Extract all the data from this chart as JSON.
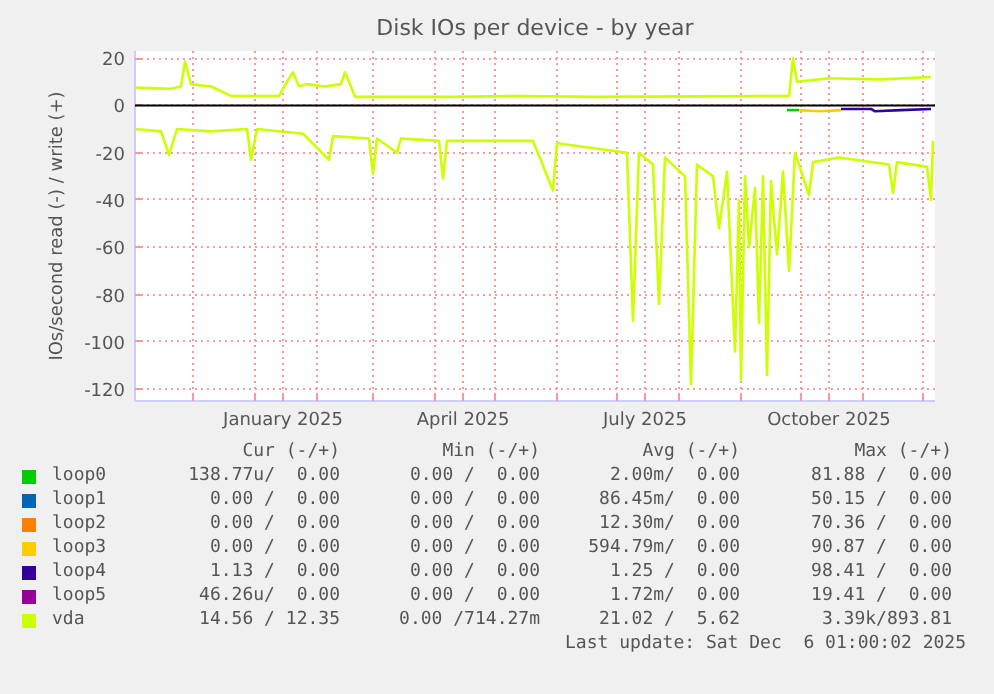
{
  "chart_data": {
    "type": "line",
    "title": "Disk IOs per device - by year",
    "ylabel": "IOs/second read (-) / write (+)",
    "xlim": [
      "2024-11-02",
      "2025-12-07"
    ],
    "ylim": [
      -125,
      23
    ],
    "yticks": [
      -120,
      -100,
      -80,
      -60,
      -40,
      -20,
      0,
      20
    ],
    "xticks": [
      {
        "value": "2024-12-01",
        "label": null
      },
      {
        "value": "2025-01-01",
        "label": null
      },
      {
        "value": "2025-01-15",
        "label": "January 2025"
      },
      {
        "value": "2025-02-01",
        "label": null
      },
      {
        "value": "2025-03-01",
        "label": null
      },
      {
        "value": "2025-04-01",
        "label": null
      },
      {
        "value": "2025-04-15",
        "label": "April 2025"
      },
      {
        "value": "2025-05-01",
        "label": null
      },
      {
        "value": "2025-06-01",
        "label": null
      },
      {
        "value": "2025-07-01",
        "label": null
      },
      {
        "value": "2025-07-15",
        "label": "July 2025"
      },
      {
        "value": "2025-08-01",
        "label": null
      },
      {
        "value": "2025-09-01",
        "label": null
      },
      {
        "value": "2025-10-01",
        "label": null
      },
      {
        "value": "2025-10-15",
        "label": "October 2025"
      },
      {
        "value": "2025-11-01",
        "label": null
      },
      {
        "value": "2025-12-01",
        "label": null
      }
    ],
    "grid": true,
    "legend": "bottom",
    "ref_lines": [
      {
        "axis": "y",
        "value": 0,
        "color": "#000000"
      }
    ],
    "series": [
      {
        "name": "loop0",
        "color": "#00cc00",
        "x": [
          "2025-09-24",
          "2025-09-30"
        ],
        "values": [
          -2,
          -2
        ]
      },
      {
        "name": "loop1",
        "color": "#0066b3"
      },
      {
        "name": "loop2",
        "color": "#ff8000"
      },
      {
        "name": "loop3",
        "color": "#ffcc00",
        "x": [
          "2025-09-30",
          "2025-10-10",
          "2025-10-21"
        ],
        "values": [
          -2,
          -2.5,
          -2
        ]
      },
      {
        "name": "loop4",
        "color": "#330099",
        "x": [
          "2025-10-21",
          "2025-11-05",
          "2025-11-07",
          "2025-11-20",
          "2025-12-05"
        ],
        "values": [
          -1.5,
          -1.5,
          -2.5,
          -2,
          -1.5
        ]
      },
      {
        "name": "loop5",
        "color": "#990099"
      },
      {
        "name": "vda",
        "color": "#ccff00",
        "x": [
          "2024-11-02",
          "2024-11-20",
          "2024-11-25",
          "2024-11-27",
          "2024-11-30",
          "2024-12-10",
          "2024-12-20",
          "2025-01-05",
          "2025-01-13",
          "2025-01-17",
          "2025-01-20",
          "2025-01-23",
          "2025-01-27",
          "2025-02-05",
          "2025-02-13",
          "2025-02-15",
          "2025-02-18",
          "2025-02-20",
          "2025-04-10",
          "2025-05-15",
          "2025-06-20",
          "2025-08-10",
          "2025-09-25",
          "2025-09-27",
          "2025-09-29",
          "2025-10-15",
          "2025-11-10",
          "2025-12-05"
        ],
        "values": [
          7.5,
          7,
          8,
          18.5,
          9,
          8,
          4,
          4,
          4,
          10,
          14,
          8,
          9,
          8,
          9,
          14,
          8,
          3.6,
          3.6,
          4,
          3.6,
          3.8,
          4,
          20,
          10,
          11.5,
          11,
          12
        ]
      },
      {
        "color": "#ccff00",
        "x": [
          "2024-11-02",
          "2024-11-15",
          "2024-11-19",
          "2024-11-23",
          "2024-12-10",
          "2024-12-28",
          "2024-12-30",
          "2025-01-02",
          "2025-01-25",
          "2025-02-07",
          "2025-02-09",
          "2025-02-27",
          "2025-03-01",
          "2025-03-03",
          "2025-03-13",
          "2025-03-15",
          "2025-04-03",
          "2025-04-05",
          "2025-04-07",
          "2025-05-20",
          "2025-05-30",
          "2025-06-01",
          "2025-07-06",
          "2025-07-09",
          "2025-07-12",
          "2025-07-19",
          "2025-07-22",
          "2025-07-25",
          "2025-08-04",
          "2025-08-07",
          "2025-08-10",
          "2025-08-18",
          "2025-08-21",
          "2025-08-25",
          "2025-08-29",
          "2025-08-31",
          "2025-09-01",
          "2025-09-03",
          "2025-09-05",
          "2025-09-08",
          "2025-09-10",
          "2025-09-12",
          "2025-09-14",
          "2025-09-16",
          "2025-09-19",
          "2025-09-22",
          "2025-09-25",
          "2025-09-28",
          "2025-10-05",
          "2025-10-07",
          "2025-10-20",
          "2025-11-14",
          "2025-11-16",
          "2025-11-18",
          "2025-12-03",
          "2025-12-05",
          "2025-12-06"
        ],
        "values": [
          -10,
          -11,
          -21,
          -10,
          -11,
          -10,
          -23,
          -10,
          -12,
          -23,
          -13,
          -14,
          -29,
          -14,
          -20,
          -14,
          -15,
          -31,
          -15,
          -15,
          -36,
          -16,
          -20,
          -91,
          -20,
          -25,
          -84,
          -22,
          -30,
          -118,
          -25,
          -30,
          -52,
          -28,
          -104,
          -40,
          -116,
          -30,
          -60,
          -35,
          -92,
          -30,
          -114,
          -32,
          -63,
          -28,
          -70,
          -20,
          -38,
          -24,
          -22,
          -25,
          -37,
          -24,
          -26,
          -40,
          -15
        ]
      }
    ],
    "annotations": [
      "Cur (-/+)",
      "Min (-/+)",
      "Avg (-/+)",
      "Max (-/+)",
      "138.77u/  0.00",
      "0.00 /  0.00",
      "2.00m/  0.00",
      "81.88 /  0.00",
      "0.00 /  0.00",
      "0.00 /  0.00",
      "86.45m/  0.00",
      "50.15 /  0.00",
      "0.00 /  0.00",
      "0.00 /  0.00",
      "12.30m/  0.00",
      "70.36 /  0.00",
      "0.00 /  0.00",
      "0.00 /  0.00",
      "594.79m/  0.00",
      "90.87 /  0.00",
      "1.13 /  0.00",
      "0.00 /  0.00",
      "1.25 /  0.00",
      "98.41 /  0.00",
      "46.26u/  0.00",
      "0.00 /  0.00",
      "1.72m/  0.00",
      "19.41 /  0.00",
      "14.56 / 12.35",
      "0.00 /714.27m",
      "21.02 /  5.62",
      "3.39k/893.81",
      "Last update: Sat Dec  6 01:00:02 2025"
    ]
  }
}
